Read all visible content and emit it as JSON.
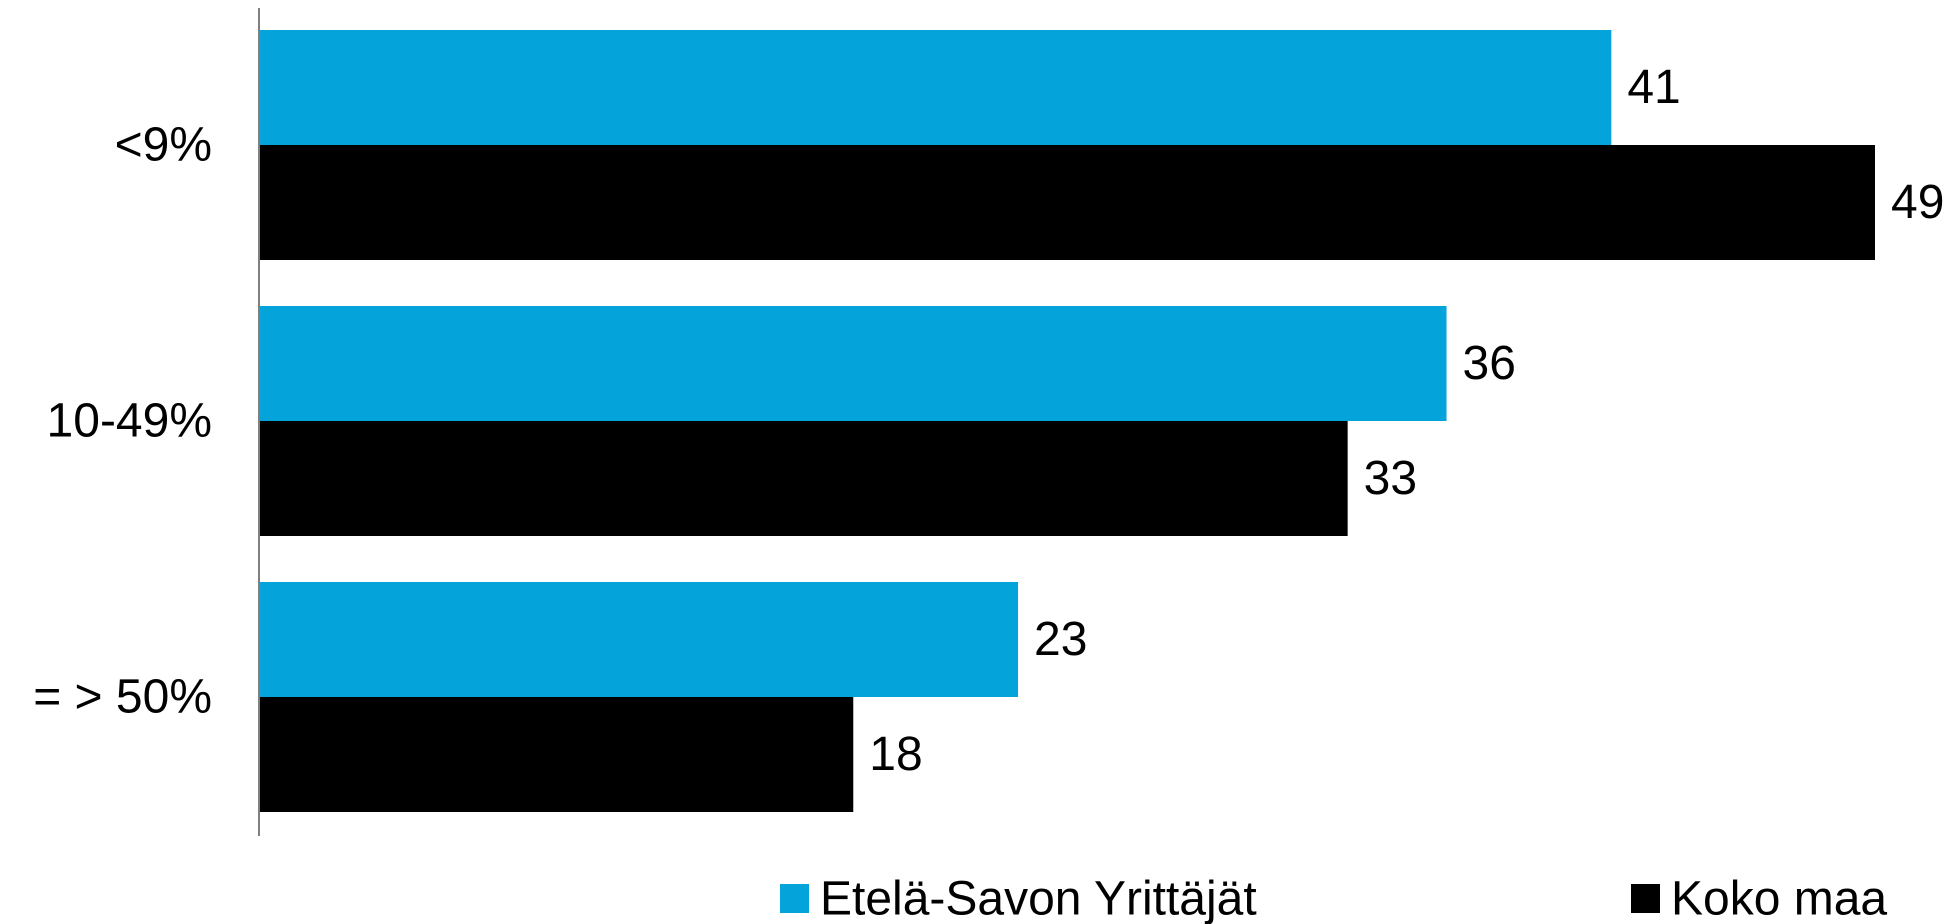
{
  "chart_data": {
    "type": "bar",
    "orientation": "horizontal",
    "categories": [
      "<9%",
      "10-49%",
      "= > 50%"
    ],
    "series": [
      {
        "name": "Etelä-Savon Yrittäjät",
        "values": [
          41,
          36,
          23
        ],
        "color": "#04A3DA"
      },
      {
        "name": "Koko maa",
        "values": [
          49,
          33,
          18
        ],
        "color": "#000000"
      }
    ],
    "title": "",
    "xlabel": "",
    "ylabel": "",
    "xlim": [
      0,
      49
    ],
    "grid": false,
    "legend": "bottom",
    "axis_color": "#7F7F7F"
  }
}
